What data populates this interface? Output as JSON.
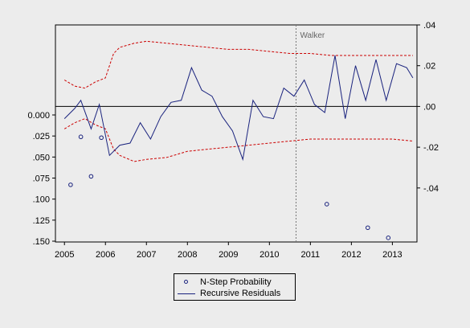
{
  "chart_data": {
    "type": "line",
    "x_ticks": [
      "2005",
      "2006",
      "2007",
      "2008",
      "2009",
      "2010",
      "2011",
      "2012",
      "2013"
    ],
    "left_axis": {
      "ticks": [
        "0.000",
        ".025",
        ".050",
        ".075",
        ".100",
        ".125",
        ".150"
      ],
      "values": [
        0.0,
        0.025,
        0.05,
        0.075,
        0.1,
        0.125,
        0.15
      ],
      "range": [
        0.0,
        0.15
      ],
      "inverted": true
    },
    "right_axis": {
      "ticks": [
        ".04",
        ".02",
        ".00",
        "-.02",
        "-.04"
      ],
      "values": [
        0.04,
        0.02,
        0.0,
        -0.02,
        -0.04
      ],
      "range": [
        -0.0665,
        0.04
      ]
    },
    "annotation": {
      "label": "Walker",
      "x": 2010.65
    },
    "series": [
      {
        "name": "N-Step Probability",
        "kind": "points",
        "axis": "left",
        "color": "#1a237e",
        "x": [
          2005.15,
          2005.4,
          2005.65,
          2005.9,
          2011.4,
          2012.4,
          2012.9
        ],
        "y": [
          0.083,
          0.026,
          0.073,
          0.027,
          0.106,
          0.134,
          0.146
        ]
      },
      {
        "name": "Recursive Residuals",
        "kind": "line",
        "axis": "right",
        "color": "#1a237e",
        "x": [
          2005.0,
          2005.25,
          2005.4,
          2005.65,
          2005.85,
          2006.1,
          2006.35,
          2006.6,
          2006.85,
          2007.1,
          2007.35,
          2007.6,
          2007.85,
          2008.1,
          2008.35,
          2008.6,
          2008.85,
          2009.1,
          2009.35,
          2009.6,
          2009.85,
          2010.1,
          2010.35,
          2010.6,
          2010.85,
          2011.1,
          2011.35,
          2011.6,
          2011.85,
          2012.1,
          2012.35,
          2012.6,
          2012.85,
          2013.1,
          2013.35,
          2013.5
        ],
        "y": [
          -0.006,
          -0.001,
          0.003,
          -0.011,
          0.001,
          -0.024,
          -0.019,
          -0.018,
          -0.008,
          -0.016,
          -0.005,
          0.002,
          0.003,
          0.019,
          0.008,
          0.005,
          -0.005,
          -0.012,
          -0.026,
          0.003,
          -0.005,
          -0.006,
          0.009,
          0.005,
          0.013,
          0.001,
          -0.003,
          0.025,
          -0.006,
          0.02,
          0.003,
          0.023,
          0.003,
          0.021,
          0.019,
          0.014
        ]
      },
      {
        "name": "Upper band",
        "kind": "dashed",
        "axis": "right",
        "color": "#cc0000",
        "x": [
          2005.0,
          2005.25,
          2005.5,
          2005.75,
          2006.0,
          2006.2,
          2006.35,
          2006.7,
          2007.0,
          2007.5,
          2008.0,
          2008.5,
          2009.0,
          2009.5,
          2010.0,
          2010.5,
          2011.0,
          2011.5,
          2012.0,
          2012.5,
          2013.0,
          2013.5
        ],
        "y": [
          0.013,
          0.01,
          0.009,
          0.012,
          0.014,
          0.026,
          0.029,
          0.031,
          0.032,
          0.031,
          0.03,
          0.029,
          0.028,
          0.028,
          0.027,
          0.026,
          0.026,
          0.025,
          0.025,
          0.025,
          0.025,
          0.025
        ]
      },
      {
        "name": "Lower band",
        "kind": "dashed",
        "axis": "right",
        "color": "#cc0000",
        "x": [
          2005.0,
          2005.25,
          2005.5,
          2005.75,
          2006.0,
          2006.2,
          2006.35,
          2006.7,
          2007.0,
          2007.5,
          2008.0,
          2008.5,
          2009.0,
          2009.5,
          2010.0,
          2010.5,
          2011.0,
          2011.5,
          2012.0,
          2012.5,
          2013.0,
          2013.5
        ],
        "y": [
          -0.011,
          -0.008,
          -0.006,
          -0.009,
          -0.011,
          -0.021,
          -0.024,
          -0.027,
          -0.026,
          -0.025,
          -0.022,
          -0.021,
          -0.02,
          -0.019,
          -0.018,
          -0.017,
          -0.016,
          -0.016,
          -0.016,
          -0.016,
          -0.016,
          -0.017
        ]
      }
    ],
    "zero_line": true,
    "grid": false,
    "legend": {
      "placement": "bottom-center",
      "entries": [
        "N-Step Probability",
        "Recursive Residuals"
      ]
    }
  }
}
